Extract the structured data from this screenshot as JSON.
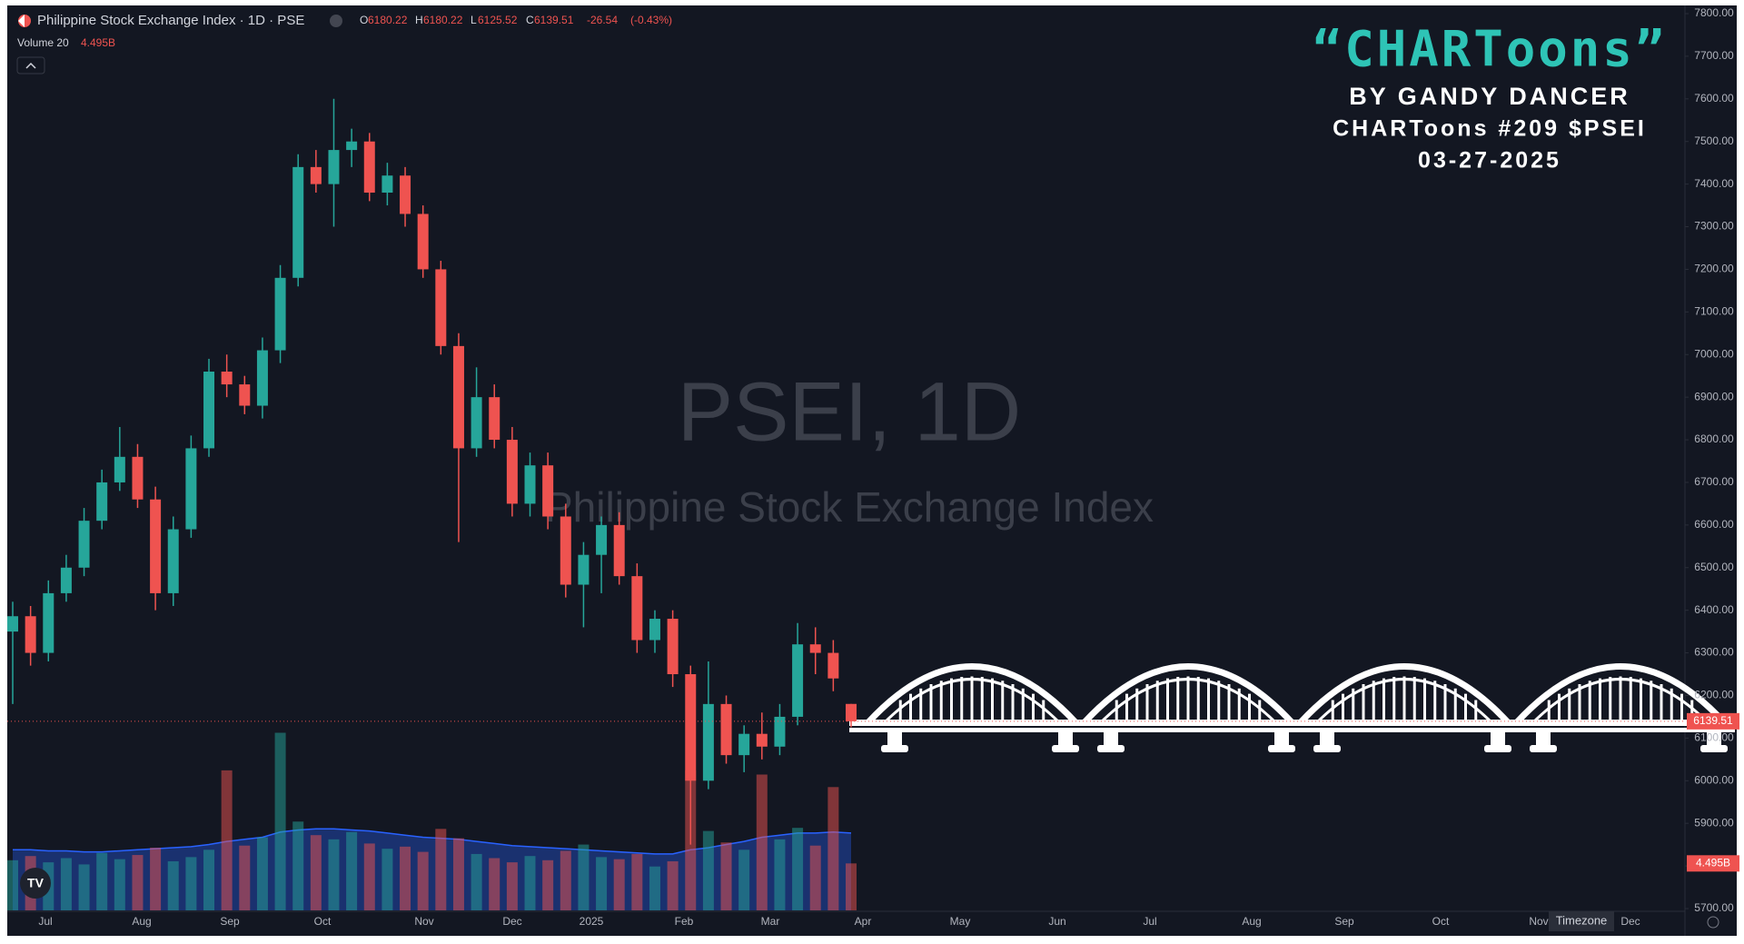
{
  "header": {
    "symbol": "Philippine Stock Exchange Index · 1D · PSE",
    "o_label": "O",
    "open": 6180.22,
    "h_label": "H",
    "high": 6180.22,
    "l_label": "L",
    "low": 6125.52,
    "c_label": "C",
    "close": 6139.51,
    "change": -26.54,
    "change_pct": {
      "value": -0.43,
      "label": "(-0.43%)"
    },
    "volume_title": "Volume 20",
    "volume": {
      "value": 4.495,
      "label": "4.495B"
    }
  },
  "watermark": {
    "title": "PSEI, 1D",
    "subtitle": "Philippine Stock Exchange Index"
  },
  "logo": {
    "title": "“CHARToons”",
    "byline": "BY GANDY DANCER",
    "issue": "CHARToons #209 $PSEI",
    "date": "03-27-2025"
  },
  "timezone_button": "Timezone",
  "chart_data": {
    "type": "candlestick",
    "up_color": "#26a69a",
    "down_color": "#ef5350",
    "ma_color": "#2962ff",
    "grid": false,
    "ylim": [
      5700,
      7800
    ],
    "yticks": [
      {
        "value": 5700,
        "label": "5700.00"
      },
      {
        "value": 5800,
        "label": "5800.00"
      },
      {
        "value": 5900,
        "label": "5900.00"
      },
      {
        "value": 6000,
        "label": "6000.00"
      },
      {
        "value": 6100,
        "label": "6100.00"
      },
      {
        "value": 6200,
        "label": "6200.00"
      },
      {
        "value": 6300,
        "label": "6300.00"
      },
      {
        "value": 6400,
        "label": "6400.00"
      },
      {
        "value": 6500,
        "label": "6500.00"
      },
      {
        "value": 6600,
        "label": "6600.00"
      },
      {
        "value": 6700,
        "label": "6700.00"
      },
      {
        "value": 6800,
        "label": "6800.00"
      },
      {
        "value": 6900,
        "label": "6900.00"
      },
      {
        "value": 7000,
        "label": "7000.00"
      },
      {
        "value": 7100,
        "label": "7100.00"
      },
      {
        "value": 7200,
        "label": "7200.00"
      },
      {
        "value": 7300,
        "label": "7300.00"
      },
      {
        "value": 7400,
        "label": "7400.00"
      },
      {
        "value": 7500,
        "label": "7500.00"
      },
      {
        "value": 7600,
        "label": "7600.00"
      },
      {
        "value": 7700,
        "label": "7700.00"
      },
      {
        "value": 7800,
        "label": "7800.00"
      }
    ],
    "x_labels": [
      "Jul",
      "Aug",
      "Sep",
      "Oct",
      "Nov",
      "Dec",
      "2025",
      "Feb",
      "Mar",
      "Apr",
      "May",
      "Jun",
      "Jul",
      "Aug",
      "Sep",
      "Oct",
      "Nov",
      "Dec"
    ],
    "open": [
      6350,
      6386,
      6300,
      6440,
      6500,
      6610,
      6700,
      6760,
      6660,
      6440,
      6590,
      6780,
      6960,
      6930,
      6880,
      7010,
      7180,
      7440,
      7400,
      7480,
      7500,
      7380,
      7420,
      7330,
      7200,
      7020,
      6780,
      6900,
      6800,
      6650,
      6740,
      6620,
      6460,
      6530,
      6600,
      6480,
      6330,
      6380,
      6250,
      6000,
      6180,
      6060,
      6110,
      6080,
      6150,
      6320,
      6300,
      6180.22
    ],
    "high": [
      6420,
      6410,
      6470,
      6530,
      6640,
      6730,
      6830,
      6790,
      6690,
      6620,
      6810,
      6990,
      7000,
      6950,
      7040,
      7210,
      7470,
      7480,
      7600,
      7530,
      7520,
      7450,
      7440,
      7350,
      7220,
      7050,
      6970,
      6930,
      6830,
      6770,
      6770,
      6650,
      6560,
      6620,
      6630,
      6510,
      6400,
      6400,
      6270,
      6280,
      6200,
      6130,
      6160,
      6180,
      6370,
      6360,
      6330,
      6180.22
    ],
    "low": [
      6180,
      6270,
      6280,
      6420,
      6480,
      6590,
      6680,
      6640,
      6400,
      6410,
      6570,
      6760,
      6900,
      6860,
      6850,
      6980,
      7160,
      7380,
      7300,
      7440,
      7360,
      7350,
      7300,
      7180,
      7000,
      6560,
      6760,
      6780,
      6620,
      6620,
      6590,
      6430,
      6360,
      6440,
      6460,
      6300,
      6300,
      6220,
      5850,
      5980,
      6040,
      6020,
      6050,
      6060,
      6130,
      6250,
      6210,
      6125.52
    ],
    "close": [
      6386,
      6300,
      6440,
      6500,
      6610,
      6700,
      6760,
      6660,
      6440,
      6590,
      6780,
      6960,
      6930,
      6880,
      7010,
      7180,
      7440,
      7400,
      7480,
      7500,
      7380,
      7420,
      7330,
      7200,
      7020,
      6780,
      6900,
      6800,
      6650,
      6740,
      6620,
      6460,
      6530,
      6600,
      6480,
      6330,
      6380,
      6250,
      6000,
      6180,
      6060,
      6110,
      6080,
      6150,
      6320,
      6300,
      6240,
      6139.51
    ],
    "volume": {
      "values": [
        4.8,
        5.2,
        4.6,
        5.0,
        4.4,
        5.5,
        4.9,
        5.3,
        6.0,
        4.7,
        5.1,
        5.8,
        13.4,
        6.2,
        7.0,
        17.0,
        8.5,
        7.2,
        6.8,
        7.5,
        6.4,
        5.9,
        6.1,
        5.6,
        7.8,
        6.9,
        5.4,
        5.0,
        4.6,
        5.2,
        4.8,
        5.7,
        6.3,
        5.1,
        4.9,
        5.4,
        4.2,
        4.7,
        13.4,
        7.6,
        6.5,
        5.8,
        13.0,
        6.8,
        7.9,
        6.2,
        11.8,
        4.495
      ]
    },
    "volume_ma": {
      "values": [
        5.8,
        5.8,
        5.7,
        5.7,
        5.6,
        5.6,
        5.7,
        5.8,
        5.9,
        6.0,
        6.1,
        6.3,
        6.6,
        6.8,
        7.0,
        7.5,
        7.7,
        7.8,
        7.8,
        7.7,
        7.6,
        7.4,
        7.2,
        7.0,
        6.9,
        6.8,
        6.6,
        6.4,
        6.2,
        6.1,
        6.0,
        5.9,
        5.8,
        5.7,
        5.6,
        5.5,
        5.4,
        5.4,
        5.8,
        6.0,
        6.3,
        6.6,
        7.0,
        7.2,
        7.4,
        7.4,
        7.5,
        7.4
      ]
    }
  }
}
